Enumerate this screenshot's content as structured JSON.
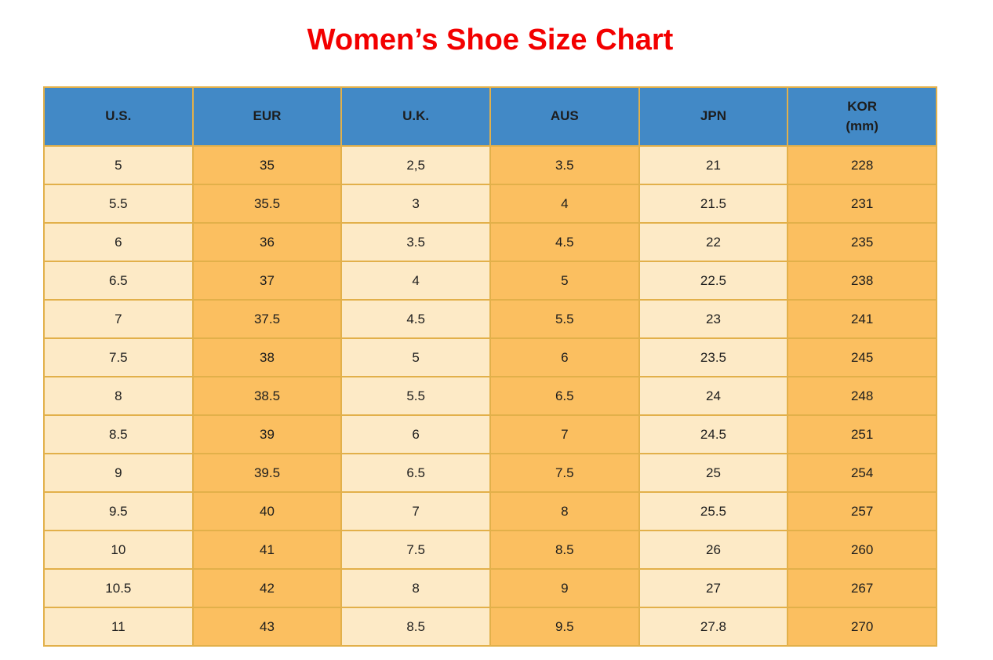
{
  "header": {
    "title": "Women’s Shoe Size Chart"
  },
  "colors": {
    "title_red": "#f30000",
    "header_blue": "#4289c6",
    "row_cream": "#fdeac6",
    "row_orange": "#fbbf60",
    "border_gold": "#e2b04a",
    "cell_text": "#1d1d1d"
  },
  "chart_data": {
    "type": "table",
    "title": "Women’s Shoe Size Chart",
    "columns": [
      {
        "id": "us",
        "label": "U.S.",
        "sublabel": ""
      },
      {
        "id": "eur",
        "label": "EUR",
        "sublabel": ""
      },
      {
        "id": "uk",
        "label": "U.K.",
        "sublabel": ""
      },
      {
        "id": "aus",
        "label": "AUS",
        "sublabel": ""
      },
      {
        "id": "jpn",
        "label": "JPN",
        "sublabel": ""
      },
      {
        "id": "kor",
        "label": "KOR",
        "sublabel": "(mm)"
      }
    ],
    "column_fill_pattern": [
      "cream",
      "orange",
      "cream",
      "orange",
      "cream",
      "orange"
    ],
    "rows": [
      [
        "5",
        "35",
        "2,5",
        "3.5",
        "21",
        "228"
      ],
      [
        "5.5",
        "35.5",
        "3",
        "4",
        "21.5",
        "231"
      ],
      [
        "6",
        "36",
        "3.5",
        "4.5",
        "22",
        "235"
      ],
      [
        "6.5",
        "37",
        "4",
        "5",
        "22.5",
        "238"
      ],
      [
        "7",
        "37.5",
        "4.5",
        "5.5",
        "23",
        "241"
      ],
      [
        "7.5",
        "38",
        "5",
        "6",
        "23.5",
        "245"
      ],
      [
        "8",
        "38.5",
        "5.5",
        "6.5",
        "24",
        "248"
      ],
      [
        "8.5",
        "39",
        "6",
        "7",
        "24.5",
        "251"
      ],
      [
        "9",
        "39.5",
        "6.5",
        "7.5",
        "25",
        "254"
      ],
      [
        "9.5",
        "40",
        "7",
        "8",
        "25.5",
        "257"
      ],
      [
        "10",
        "41",
        "7.5",
        "8.5",
        "26",
        "260"
      ],
      [
        "10.5",
        "42",
        "8",
        "9",
        "27",
        "267"
      ],
      [
        "11",
        "43",
        "8.5",
        "9.5",
        "27.8",
        "270"
      ]
    ]
  }
}
